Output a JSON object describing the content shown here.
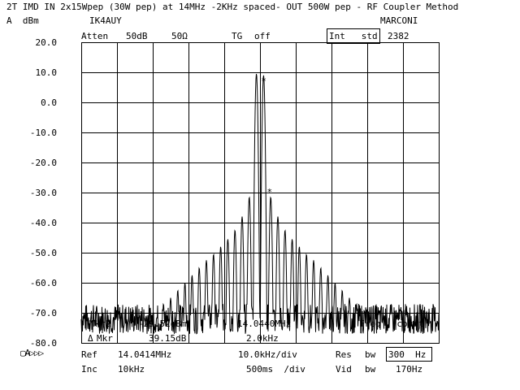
{
  "header": {
    "title": "2T IMD IN 2x15Wpep (30W pep) at 14MHz -2KHz spaced- OUT 500W pep - RF Coupler Method",
    "unit_line": "A  dBm",
    "callsign": "IK4AUY",
    "brand": "MARCONI"
  },
  "top_settings": {
    "ref_level": "20.0",
    "atten_label": "Atten",
    "atten_value": "50dB",
    "impedance": "50Ω",
    "tg_label": "TG",
    "tg_value": "off",
    "int_std_label": "Int   std",
    "model": "2382"
  },
  "markers": {
    "mkr2_label": "Mkr2",
    "mkr2_level": "-29.52dBm",
    "mkr2_freq": "14.0440MHz",
    "freq_count": "Freq   count",
    "delta_label": "Mkr",
    "delta_level": "39.15dB",
    "delta_freq": "2.0kHz"
  },
  "bottom": {
    "mode_icons": "▢A▷▷▷",
    "ref_label": "Ref",
    "ref_value": "14.0414MHz",
    "span_div": "10.0kHz/div",
    "res_label": "Res",
    "res_bw_label": "bw",
    "res_bw_value": "300  Hz",
    "inc_label": "Inc",
    "inc_value": "10kHz",
    "sweep_div": "500ms  /div",
    "vid_label": "Vid",
    "vid_bw_label": "bw",
    "vid_bw_value": "170Hz"
  },
  "chart_data": {
    "type": "line",
    "title": "2T IMD IN 2x15Wpep (30W pep) at 14MHz -2KHz spaced- OUT 500W pep - RF Coupler Method",
    "xlabel": "",
    "ylabel": "dBm",
    "y_ticks": [
      "20.0",
      "10.0",
      "0.0",
      "-10.0",
      "-20.0",
      "-30.0",
      "-40.0",
      "-50.0",
      "-60.0",
      "-70.0",
      "-80.0"
    ],
    "ylim": [
      -80,
      20
    ],
    "x_divisions": 10,
    "y_divisions": 10,
    "center_freq_mhz": 14.0414,
    "span_per_div_khz": 10,
    "grid": true,
    "series": [
      {
        "tone_spacing_khz": 2.0,
        "tone_levels_dbm": [
          9.5,
          9.0
        ],
        "imd_products_dbm": [
          [
            3,
            -31.5
          ],
          [
            5,
            -38.0
          ],
          [
            7,
            -42.5
          ],
          [
            9,
            -45.5
          ],
          [
            11,
            -48.0
          ],
          [
            13,
            -50.5
          ],
          [
            15,
            -52.5
          ],
          [
            17,
            -55.0
          ],
          [
            19,
            -57.5
          ],
          [
            21,
            -60.0
          ],
          [
            23,
            -62.5
          ],
          [
            25,
            -65.0
          ],
          [
            27,
            -67.0
          ]
        ],
        "noise_floor_dbm": -72.0
      }
    ],
    "markers": [
      {
        "label": "*",
        "x_mhz": 14.0424,
        "y_dbm": 7.5
      },
      {
        "label": "*",
        "x_mhz": 14.044,
        "y_dbm": -29.52
      }
    ]
  }
}
